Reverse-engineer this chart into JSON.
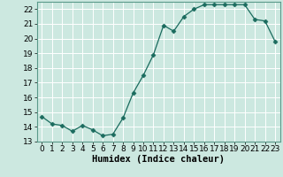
{
  "x": [
    0,
    1,
    2,
    3,
    4,
    5,
    6,
    7,
    8,
    9,
    10,
    11,
    12,
    13,
    14,
    15,
    16,
    17,
    18,
    19,
    20,
    21,
    22,
    23
  ],
  "y": [
    14.7,
    14.2,
    14.1,
    13.7,
    14.1,
    13.8,
    13.4,
    13.5,
    14.6,
    16.3,
    17.5,
    18.9,
    20.9,
    20.5,
    21.5,
    22.0,
    22.3,
    22.3,
    22.3,
    22.3,
    22.3,
    21.3,
    21.2,
    19.8
  ],
  "line_color": "#1a6b5e",
  "marker": "D",
  "marker_size": 2.5,
  "bg_color": "#cce8e0",
  "grid_color": "#ffffff",
  "xlabel": "Humidex (Indice chaleur)",
  "xlabel_fontsize": 7.5,
  "tick_fontsize": 6.5,
  "ylim": [
    13,
    22.5
  ],
  "xlim": [
    -0.5,
    23.5
  ],
  "yticks": [
    13,
    14,
    15,
    16,
    17,
    18,
    19,
    20,
    21,
    22
  ],
  "xticks": [
    0,
    1,
    2,
    3,
    4,
    5,
    6,
    7,
    8,
    9,
    10,
    11,
    12,
    13,
    14,
    15,
    16,
    17,
    18,
    19,
    20,
    21,
    22,
    23
  ]
}
